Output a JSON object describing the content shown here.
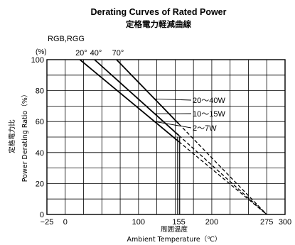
{
  "chart_data": {
    "type": "line",
    "title": "Derating Curves of Rated Power",
    "subtitle": "定格電力軽減曲線",
    "series_group_label": "RGB,RGG",
    "xlabel_jp": "周囲温度",
    "xlabel": "Ambient Temperature（℃）",
    "ylabel": "Power Derating Ratio（%）",
    "ylabel_jp": "定格電力比",
    "y_unit": "(%)",
    "xlim": [
      -25,
      300
    ],
    "ylim": [
      0,
      100
    ],
    "x_ticks": [
      {
        "value": -25,
        "label": "−25"
      },
      {
        "value": 0,
        "label": "0"
      },
      {
        "value": 100,
        "label": "100"
      },
      {
        "value": 155,
        "label": "155"
      },
      {
        "value": 200,
        "label": "200"
      },
      {
        "value": 275,
        "label": "275"
      },
      {
        "value": 300,
        "label": "300"
      }
    ],
    "y_ticks": [
      {
        "value": 0,
        "label": "0"
      },
      {
        "value": 20,
        "label": "20"
      },
      {
        "value": 40,
        "label": "40"
      },
      {
        "value": 60,
        "label": "60"
      },
      {
        "value": 80,
        "label": "80"
      },
      {
        "value": 100,
        "label": "100"
      }
    ],
    "top_annotations": [
      {
        "x": 20,
        "label": "20°"
      },
      {
        "x": 40,
        "label": "40°"
      },
      {
        "x": 70,
        "label": "70°"
      }
    ],
    "series": [
      {
        "name": "2〜7W",
        "start_x": 20,
        "end_x": 275,
        "solid_to_x": 155
      },
      {
        "name": "10〜15W",
        "start_x": 40,
        "end_x": 275,
        "solid_to_x": 155
      },
      {
        "name": "20〜40W",
        "start_x": 70,
        "end_x": 275,
        "solid_to_x": 155
      }
    ],
    "cutoff_x": 155,
    "grid": true,
    "legend": "labels with leader lines, upper right"
  }
}
